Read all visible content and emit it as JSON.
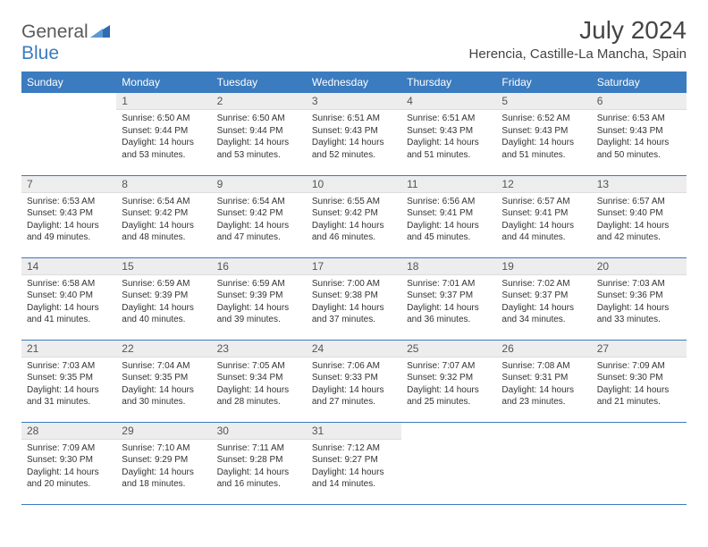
{
  "logo": {
    "part1": "General",
    "part2": "Blue"
  },
  "title": "July 2024",
  "location": "Herencia, Castille-La Mancha, Spain",
  "headerColor": "#3b7bbf",
  "dayNames": [
    "Sunday",
    "Monday",
    "Tuesday",
    "Wednesday",
    "Thursday",
    "Friday",
    "Saturday"
  ],
  "weeks": [
    [
      null,
      {
        "num": "1",
        "sunrise": "6:50 AM",
        "sunset": "9:44 PM",
        "daylight": "14 hours and 53 minutes."
      },
      {
        "num": "2",
        "sunrise": "6:50 AM",
        "sunset": "9:44 PM",
        "daylight": "14 hours and 53 minutes."
      },
      {
        "num": "3",
        "sunrise": "6:51 AM",
        "sunset": "9:43 PM",
        "daylight": "14 hours and 52 minutes."
      },
      {
        "num": "4",
        "sunrise": "6:51 AM",
        "sunset": "9:43 PM",
        "daylight": "14 hours and 51 minutes."
      },
      {
        "num": "5",
        "sunrise": "6:52 AM",
        "sunset": "9:43 PM",
        "daylight": "14 hours and 51 minutes."
      },
      {
        "num": "6",
        "sunrise": "6:53 AM",
        "sunset": "9:43 PM",
        "daylight": "14 hours and 50 minutes."
      }
    ],
    [
      {
        "num": "7",
        "sunrise": "6:53 AM",
        "sunset": "9:43 PM",
        "daylight": "14 hours and 49 minutes."
      },
      {
        "num": "8",
        "sunrise": "6:54 AM",
        "sunset": "9:42 PM",
        "daylight": "14 hours and 48 minutes."
      },
      {
        "num": "9",
        "sunrise": "6:54 AM",
        "sunset": "9:42 PM",
        "daylight": "14 hours and 47 minutes."
      },
      {
        "num": "10",
        "sunrise": "6:55 AM",
        "sunset": "9:42 PM",
        "daylight": "14 hours and 46 minutes."
      },
      {
        "num": "11",
        "sunrise": "6:56 AM",
        "sunset": "9:41 PM",
        "daylight": "14 hours and 45 minutes."
      },
      {
        "num": "12",
        "sunrise": "6:57 AM",
        "sunset": "9:41 PM",
        "daylight": "14 hours and 44 minutes."
      },
      {
        "num": "13",
        "sunrise": "6:57 AM",
        "sunset": "9:40 PM",
        "daylight": "14 hours and 42 minutes."
      }
    ],
    [
      {
        "num": "14",
        "sunrise": "6:58 AM",
        "sunset": "9:40 PM",
        "daylight": "14 hours and 41 minutes."
      },
      {
        "num": "15",
        "sunrise": "6:59 AM",
        "sunset": "9:39 PM",
        "daylight": "14 hours and 40 minutes."
      },
      {
        "num": "16",
        "sunrise": "6:59 AM",
        "sunset": "9:39 PM",
        "daylight": "14 hours and 39 minutes."
      },
      {
        "num": "17",
        "sunrise": "7:00 AM",
        "sunset": "9:38 PM",
        "daylight": "14 hours and 37 minutes."
      },
      {
        "num": "18",
        "sunrise": "7:01 AM",
        "sunset": "9:37 PM",
        "daylight": "14 hours and 36 minutes."
      },
      {
        "num": "19",
        "sunrise": "7:02 AM",
        "sunset": "9:37 PM",
        "daylight": "14 hours and 34 minutes."
      },
      {
        "num": "20",
        "sunrise": "7:03 AM",
        "sunset": "9:36 PM",
        "daylight": "14 hours and 33 minutes."
      }
    ],
    [
      {
        "num": "21",
        "sunrise": "7:03 AM",
        "sunset": "9:35 PM",
        "daylight": "14 hours and 31 minutes."
      },
      {
        "num": "22",
        "sunrise": "7:04 AM",
        "sunset": "9:35 PM",
        "daylight": "14 hours and 30 minutes."
      },
      {
        "num": "23",
        "sunrise": "7:05 AM",
        "sunset": "9:34 PM",
        "daylight": "14 hours and 28 minutes."
      },
      {
        "num": "24",
        "sunrise": "7:06 AM",
        "sunset": "9:33 PM",
        "daylight": "14 hours and 27 minutes."
      },
      {
        "num": "25",
        "sunrise": "7:07 AM",
        "sunset": "9:32 PM",
        "daylight": "14 hours and 25 minutes."
      },
      {
        "num": "26",
        "sunrise": "7:08 AM",
        "sunset": "9:31 PM",
        "daylight": "14 hours and 23 minutes."
      },
      {
        "num": "27",
        "sunrise": "7:09 AM",
        "sunset": "9:30 PM",
        "daylight": "14 hours and 21 minutes."
      }
    ],
    [
      {
        "num": "28",
        "sunrise": "7:09 AM",
        "sunset": "9:30 PM",
        "daylight": "14 hours and 20 minutes."
      },
      {
        "num": "29",
        "sunrise": "7:10 AM",
        "sunset": "9:29 PM",
        "daylight": "14 hours and 18 minutes."
      },
      {
        "num": "30",
        "sunrise": "7:11 AM",
        "sunset": "9:28 PM",
        "daylight": "14 hours and 16 minutes."
      },
      {
        "num": "31",
        "sunrise": "7:12 AM",
        "sunset": "9:27 PM",
        "daylight": "14 hours and 14 minutes."
      },
      null,
      null,
      null
    ]
  ],
  "labels": {
    "sunrise": "Sunrise:",
    "sunset": "Sunset:",
    "daylight": "Daylight:"
  }
}
